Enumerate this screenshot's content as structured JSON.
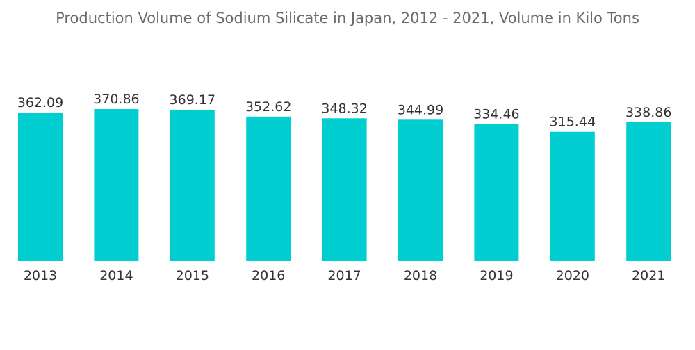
{
  "chart_data": {
    "type": "bar",
    "title": "Production Volume of Sodium Silicate in Japan, 2012 - 2021, Volume in Kilo Tons",
    "categories": [
      "2013",
      "2014",
      "2015",
      "2016",
      "2017",
      "2018",
      "2019",
      "2020",
      "2021"
    ],
    "values": [
      362.09,
      370.86,
      369.17,
      352.62,
      348.32,
      344.99,
      334.46,
      315.44,
      338.86
    ],
    "value_labels": [
      "362.09",
      "370.86",
      "369.17",
      "352.62",
      "348.32",
      "344.99",
      "334.46",
      "315.44",
      "338.86"
    ],
    "xlabel": "",
    "ylabel": "",
    "ylim": [
      0,
      370.86
    ],
    "grid": false,
    "legend": "none",
    "colors": {
      "bar": "#00ced1",
      "text": "#333333",
      "title": "#6b6b6b"
    }
  }
}
